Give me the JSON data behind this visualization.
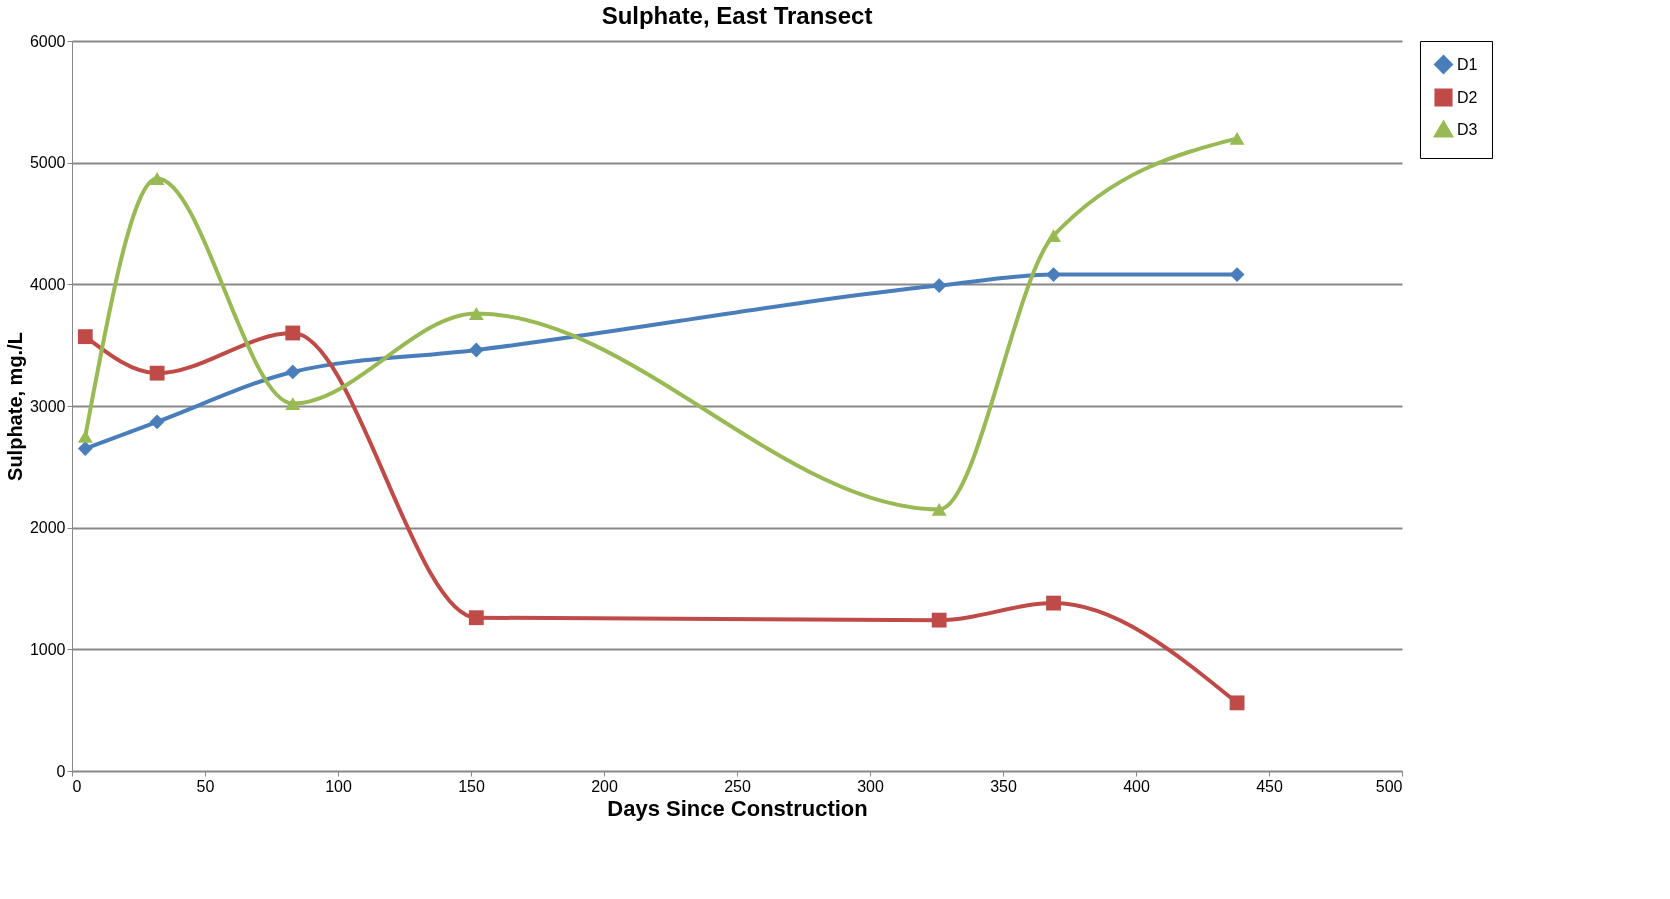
{
  "chart_data": {
    "type": "line",
    "title": "Sulphate, East Transect",
    "xlabel": "Days Since Construction",
    "ylabel": "Sulphate, mg./L",
    "x": [
      5,
      32,
      83,
      152,
      326,
      369,
      438
    ],
    "series": [
      {
        "name": "D1",
        "color": "#4a7ebb",
        "marker": "diamond",
        "values": [
          2650,
          2870,
          3280,
          3460,
          3990,
          4080,
          4080
        ]
      },
      {
        "name": "D2",
        "color": "#be4b48",
        "marker": "square",
        "values": [
          3570,
          3270,
          3600,
          1260,
          1240,
          1380,
          560
        ]
      },
      {
        "name": "D3",
        "color": "#98b954",
        "marker": "triangle",
        "values": [
          2750,
          4870,
          3020,
          3760,
          2150,
          4400,
          5200
        ]
      }
    ],
    "xlim": [
      0,
      500
    ],
    "xticks": [
      0,
      50,
      100,
      150,
      200,
      250,
      300,
      350,
      400,
      450,
      500
    ],
    "ylim": [
      0,
      6000
    ],
    "yticks": [
      0,
      1000,
      2000,
      3000,
      4000,
      5000,
      6000
    ],
    "grid": "y",
    "legend": "right"
  }
}
